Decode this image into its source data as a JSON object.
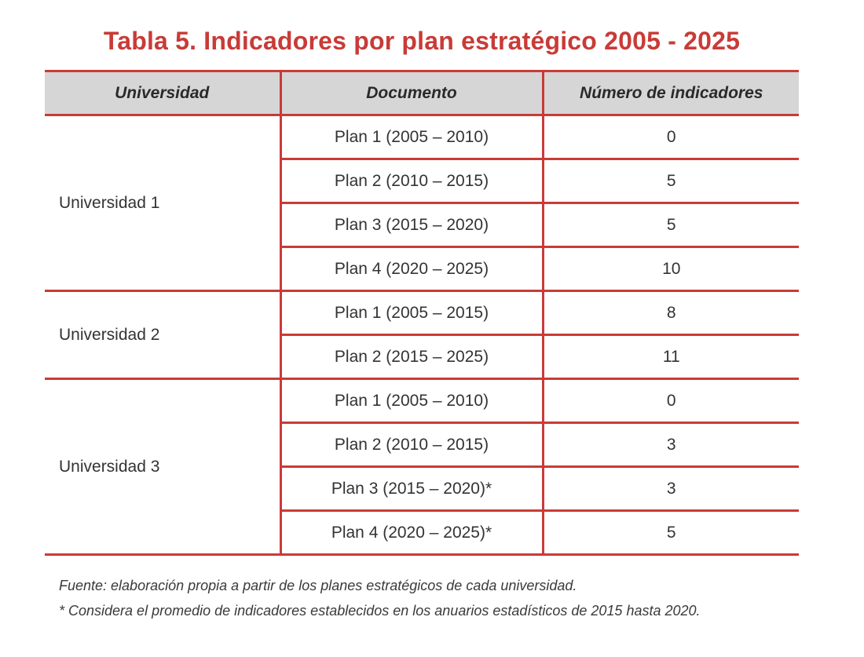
{
  "title": "Tabla 5. Indicadores por plan estratégico 2005 - 2025",
  "colors": {
    "accent": "#c93b37",
    "header_bg": "#d6d6d6"
  },
  "table": {
    "headers": [
      "Universidad",
      "Documento",
      "Número de indicadores"
    ],
    "groups": [
      {
        "universidad": "Universidad 1",
        "rows": [
          {
            "documento": "Plan 1 (2005 – 2010)",
            "indicadores": "0"
          },
          {
            "documento": "Plan 2 (2010 – 2015)",
            "indicadores": "5"
          },
          {
            "documento": "Plan 3 (2015 – 2020)",
            "indicadores": "5"
          },
          {
            "documento": "Plan 4 (2020 – 2025)",
            "indicadores": "10"
          }
        ]
      },
      {
        "universidad": "Universidad 2",
        "rows": [
          {
            "documento": "Plan 1 (2005 – 2015)",
            "indicadores": "8"
          },
          {
            "documento": "Plan 2 (2015 – 2025)",
            "indicadores": "11"
          }
        ]
      },
      {
        "universidad": "Universidad 3",
        "rows": [
          {
            "documento": "Plan 1 (2005 – 2010)",
            "indicadores": "0"
          },
          {
            "documento": "Plan 2 (2010 – 2015)",
            "indicadores": "3"
          },
          {
            "documento": "Plan 3 (2015 – 2020)*",
            "indicadores": "3"
          },
          {
            "documento": "Plan 4 (2020 – 2025)*",
            "indicadores": "5"
          }
        ]
      }
    ]
  },
  "footnotes": {
    "source": "Fuente: elaboración propia a partir de los planes estratégicos de cada universidad.",
    "note": "* Considera el promedio de indicadores establecidos en los anuarios estadísticos de 2015 hasta 2020."
  }
}
